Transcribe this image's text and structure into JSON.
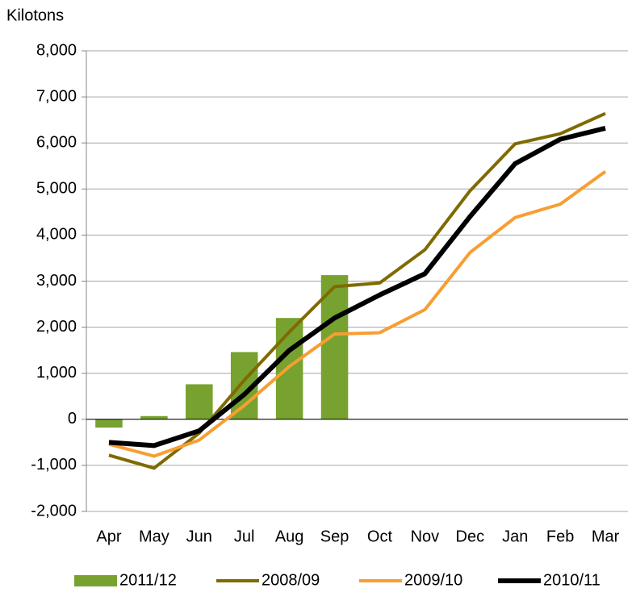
{
  "chart_data": {
    "type": "bar-line",
    "y_axis_label": "Kilotons",
    "categories": [
      "Apr",
      "May",
      "Jun",
      "Jul",
      "Aug",
      "Sep",
      "Oct",
      "Nov",
      "Dec",
      "Jan",
      "Feb",
      "Mar"
    ],
    "series": [
      {
        "name": "2011/12",
        "type": "bar",
        "color": "#77a22f",
        "values": [
          -180,
          70,
          760,
          1460,
          2200,
          3130,
          null,
          null,
          null,
          null,
          null,
          null
        ]
      },
      {
        "name": "2008/09",
        "type": "line",
        "color": "#7f6a00",
        "values": [
          -780,
          -1060,
          -300,
          850,
          1900,
          2880,
          2960,
          3680,
          4960,
          5980,
          6200,
          6640
        ]
      },
      {
        "name": "2009/10",
        "type": "line",
        "color": "#f79e33",
        "values": [
          -540,
          -800,
          -450,
          300,
          1150,
          1850,
          1880,
          2380,
          3620,
          4380,
          4670,
          5380
        ]
      },
      {
        "name": "2010/11",
        "type": "line",
        "color": "#000000",
        "values": [
          -500,
          -570,
          -250,
          540,
          1500,
          2200,
          2700,
          3160,
          4400,
          5550,
          6080,
          6320
        ]
      }
    ],
    "ylim": [
      -2000,
      8000
    ],
    "yticks": [
      {
        "value": -2000,
        "label": "-2,000"
      },
      {
        "value": -1000,
        "label": "-1,000"
      },
      0,
      {
        "value": 1000,
        "label": "1,000"
      },
      {
        "value": 2000,
        "label": "2,000"
      },
      {
        "value": 3000,
        "label": "3,000"
      },
      {
        "value": 4000,
        "label": "4,000"
      },
      {
        "value": 5000,
        "label": "5,000"
      },
      {
        "value": 6000,
        "label": "6,000"
      },
      {
        "value": 7000,
        "label": "7,000"
      },
      {
        "value": 8000,
        "label": "8,000"
      }
    ],
    "grid": true
  }
}
